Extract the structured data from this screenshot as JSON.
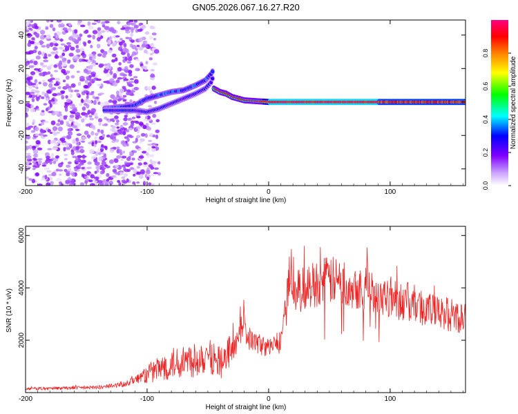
{
  "figure_title": "GN05.2026.067.16.27.R20",
  "chart_data": [
    {
      "type": "heatmap",
      "panel": "spectrogram",
      "xlabel": "Height of straight line (km)",
      "ylabel": "Frequency (Hz)",
      "xlim": [
        -200,
        162
      ],
      "ylim": [
        -50,
        49
      ],
      "xticks": [
        -200,
        -100,
        0,
        100
      ],
      "yticks": [
        -40,
        -20,
        0,
        20,
        40
      ],
      "colorbar": {
        "label": "Normalized spectral amplitude",
        "range": [
          0,
          1
        ],
        "ticks": [
          "0.0",
          "0.2",
          "0.4",
          "0.6",
          "0.8"
        ],
        "colors": [
          "#ffffff",
          "#c8a0ff",
          "#8000ff",
          "#0000ff",
          "#00ffff",
          "#00ff00",
          "#ffff00",
          "#ff8000",
          "#ff0000",
          "#ff0080"
        ]
      },
      "noise_region_km": [
        -200,
        -105
      ],
      "track_upper": {
        "x": [
          -135,
          -120,
          -110,
          -100,
          -90,
          -80,
          -70,
          -60,
          -52,
          -47,
          -45
        ],
        "y": [
          -4,
          -3,
          -2,
          2,
          4,
          6,
          7,
          10,
          13,
          17,
          20
        ],
        "amplitude": 0.35
      },
      "track_lower": {
        "x": [
          -135,
          -120,
          -110,
          -100,
          -90,
          -80,
          -70,
          -60,
          -52,
          -47,
          -45
        ],
        "y": [
          -5,
          -5,
          -5,
          -6,
          -4,
          -1,
          2,
          5,
          8,
          12,
          17
        ],
        "amplitude": 0.3
      },
      "track_main": {
        "x": [
          -45,
          -40,
          -35,
          -30,
          -25,
          -20,
          -10,
          0,
          10,
          50,
          100,
          162
        ],
        "y": [
          8,
          6,
          5,
          3,
          2,
          1,
          0.5,
          0,
          0,
          0,
          0,
          0
        ],
        "amplitude_levels": [
          {
            "x0": -45,
            "x1": -5,
            "amplitude": 0.5
          },
          {
            "x0": -5,
            "x1": 0,
            "amplitude": 0.7
          },
          {
            "x0": 0,
            "x1": 90,
            "amplitude": 0.95
          },
          {
            "x0": 90,
            "x1": 162,
            "amplitude": 0.8
          }
        ]
      }
    },
    {
      "type": "line",
      "panel": "snr",
      "xlabel": "Height of straight line (km)",
      "ylabel": "SNR (10 * v/v)",
      "xlim": [
        -200,
        162
      ],
      "ylim": [
        0,
        6350
      ],
      "xticks": [
        -200,
        -100,
        0,
        100
      ],
      "yticks": [
        2000,
        4000,
        6000
      ],
      "color": "#ee2222",
      "series": [
        {
          "name": "SNR",
          "x": [
            -200,
            -180,
            -160,
            -140,
            -130,
            -120,
            -110,
            -100,
            -90,
            -80,
            -70,
            -60,
            -55,
            -50,
            -45,
            -40,
            -35,
            -30,
            -25,
            -22,
            -20,
            -18,
            -15,
            -10,
            -5,
            0,
            5,
            10,
            15,
            17,
            18,
            20,
            25,
            30,
            40,
            50,
            60,
            70,
            80,
            90,
            100,
            110,
            120,
            130,
            140,
            150,
            162
          ],
          "values": [
            150,
            160,
            180,
            200,
            250,
            300,
            500,
            700,
            900,
            1100,
            1200,
            1300,
            1400,
            1600,
            1300,
            1200,
            1300,
            1600,
            2000,
            2600,
            3000,
            2200,
            2000,
            1900,
            1800,
            1700,
            1900,
            1900,
            3400,
            4700,
            5300,
            3700,
            3900,
            4000,
            4200,
            4300,
            4200,
            4100,
            4000,
            3800,
            3700,
            3500,
            3400,
            3200,
            3000,
            3000,
            2800
          ]
        }
      ]
    }
  ]
}
